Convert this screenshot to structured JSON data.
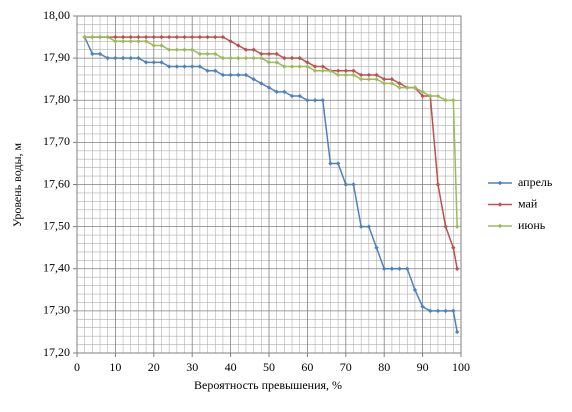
{
  "chart_data": {
    "type": "line",
    "ylabel": "Уровень воды, м",
    "xlabel": "Вероятность превышения, %",
    "x": [
      2,
      4,
      6,
      8,
      10,
      12,
      14,
      16,
      18,
      20,
      22,
      24,
      26,
      28,
      30,
      32,
      34,
      36,
      38,
      40,
      42,
      44,
      46,
      48,
      50,
      52,
      54,
      56,
      58,
      60,
      62,
      64,
      66,
      68,
      70,
      72,
      74,
      76,
      78,
      80,
      82,
      84,
      86,
      88,
      90,
      92,
      94,
      96,
      98,
      99
    ],
    "series": [
      {
        "name": "апрель",
        "color": "#4f81bd",
        "values": [
          17.95,
          17.91,
          17.91,
          17.9,
          17.9,
          17.9,
          17.9,
          17.9,
          17.89,
          17.89,
          17.89,
          17.88,
          17.88,
          17.88,
          17.88,
          17.88,
          17.87,
          17.87,
          17.86,
          17.86,
          17.86,
          17.86,
          17.85,
          17.84,
          17.83,
          17.82,
          17.82,
          17.81,
          17.81,
          17.8,
          17.8,
          17.8,
          17.65,
          17.65,
          17.6,
          17.6,
          17.5,
          17.5,
          17.45,
          17.4,
          17.4,
          17.4,
          17.4,
          17.35,
          17.31,
          17.3,
          17.3,
          17.3,
          17.3,
          17.25
        ]
      },
      {
        "name": "май",
        "color": "#c0504d",
        "values": [
          17.95,
          17.95,
          17.95,
          17.95,
          17.95,
          17.95,
          17.95,
          17.95,
          17.95,
          17.95,
          17.95,
          17.95,
          17.95,
          17.95,
          17.95,
          17.95,
          17.95,
          17.95,
          17.95,
          17.94,
          17.93,
          17.92,
          17.92,
          17.91,
          17.91,
          17.91,
          17.9,
          17.9,
          17.9,
          17.89,
          17.88,
          17.88,
          17.87,
          17.87,
          17.87,
          17.87,
          17.86,
          17.86,
          17.86,
          17.85,
          17.85,
          17.84,
          17.83,
          17.83,
          17.81,
          17.81,
          17.6,
          17.5,
          17.45,
          17.4
        ]
      },
      {
        "name": "июнь",
        "color": "#9bbb59",
        "values": [
          17.95,
          17.95,
          17.95,
          17.95,
          17.94,
          17.94,
          17.94,
          17.94,
          17.94,
          17.93,
          17.93,
          17.92,
          17.92,
          17.92,
          17.92,
          17.91,
          17.91,
          17.91,
          17.9,
          17.9,
          17.9,
          17.9,
          17.9,
          17.9,
          17.89,
          17.89,
          17.88,
          17.88,
          17.88,
          17.88,
          17.87,
          17.87,
          17.87,
          17.86,
          17.86,
          17.86,
          17.85,
          17.85,
          17.85,
          17.84,
          17.84,
          17.83,
          17.83,
          17.83,
          17.82,
          17.81,
          17.81,
          17.8,
          17.8,
          17.5
        ]
      }
    ],
    "xlim": [
      0,
      100
    ],
    "xticks": [
      0,
      10,
      20,
      30,
      40,
      50,
      60,
      70,
      80,
      90,
      100
    ],
    "ylim": [
      17.2,
      18.0
    ],
    "yticks": [
      {
        "value": 17.2,
        "label": "17,20"
      },
      {
        "value": 17.3,
        "label": "17,30"
      },
      {
        "value": 17.4,
        "label": "17,40"
      },
      {
        "value": 17.5,
        "label": "17,50"
      },
      {
        "value": 17.6,
        "label": "17,60"
      },
      {
        "value": 17.7,
        "label": "17,70"
      },
      {
        "value": 17.8,
        "label": "17,80"
      },
      {
        "value": 17.9,
        "label": "17,90"
      },
      {
        "value": 18.0,
        "label": "18,00"
      }
    ],
    "grid": true,
    "minor_grid": true,
    "legend": "right"
  }
}
